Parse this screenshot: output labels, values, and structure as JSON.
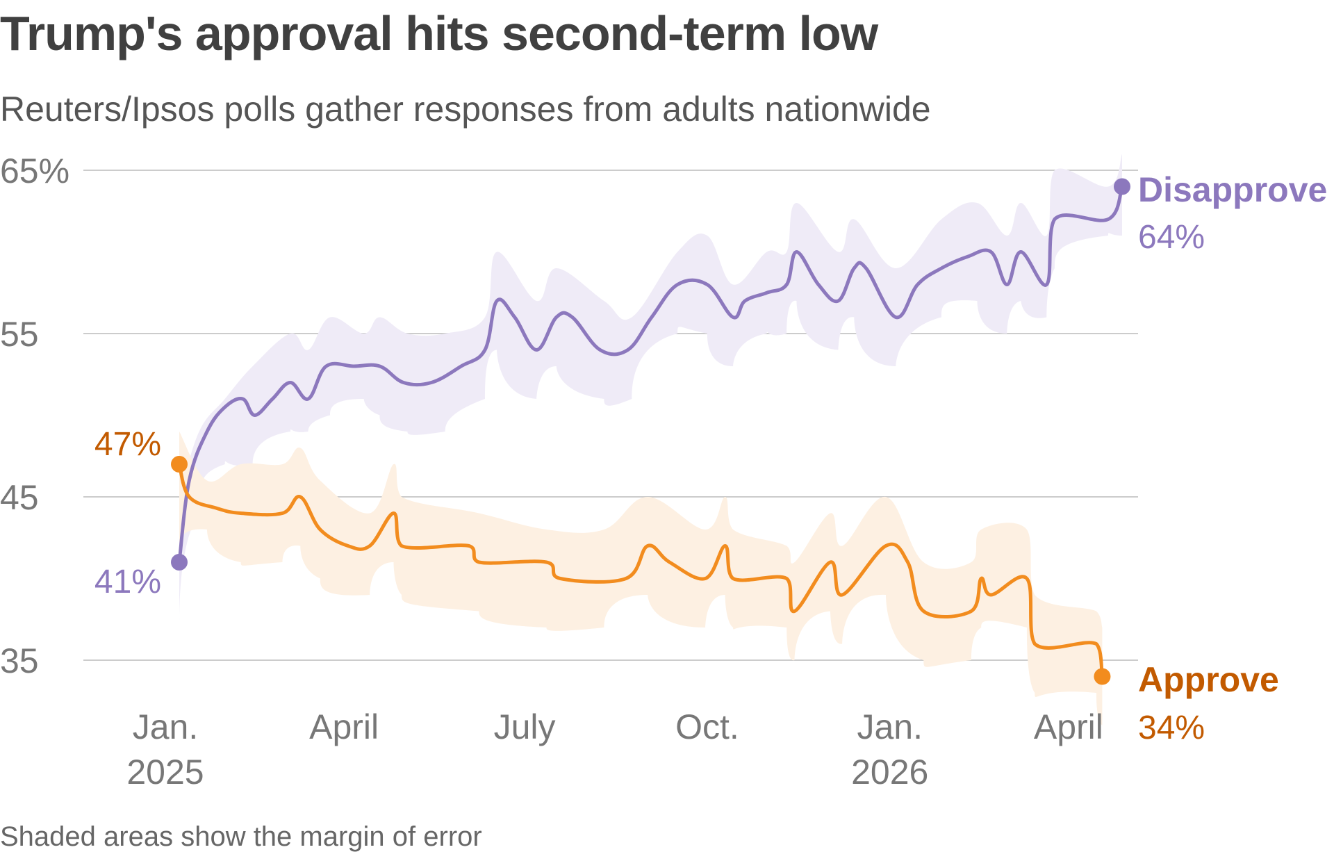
{
  "title": "Trump's approval hits second-term low",
  "subtitle": "Reuters/Ipsos polls gather responses from adults nationwide",
  "footnote": "Shaded areas show the margin of error",
  "colors": {
    "disapprove": "#8c78bd",
    "disapprove_band": "#efebf7",
    "approve": "#f28c1e",
    "approve_band": "#fdf0e2",
    "approve_label": "#c25a00",
    "grid": "#cccccc",
    "tick": "#777777"
  },
  "chart_data": {
    "type": "line",
    "title": "Trump's approval hits second-term low",
    "subtitle": "Reuters/Ipsos polls gather responses from adults nationwide",
    "xlabel": "",
    "ylabel": "",
    "ylim": [
      33,
      66
    ],
    "xlim": [
      "2025-01-01",
      "2026-05-12"
    ],
    "grid": true,
    "y_ticks": [
      {
        "value": 65,
        "label": "65%"
      },
      {
        "value": 55,
        "label": "55"
      },
      {
        "value": 45,
        "label": "45"
      },
      {
        "value": 35,
        "label": "35"
      }
    ],
    "x_ticks": [
      {
        "date": "2025-01-15",
        "label": "Jan.",
        "sublabel": "2025"
      },
      {
        "date": "2025-04-15",
        "label": "April",
        "sublabel": ""
      },
      {
        "date": "2025-07-15",
        "label": "July",
        "sublabel": ""
      },
      {
        "date": "2025-10-15",
        "label": "Oct.",
        "sublabel": ""
      },
      {
        "date": "2026-01-15",
        "label": "Jan.",
        "sublabel": "2026"
      },
      {
        "date": "2026-04-15",
        "label": "April",
        "sublabel": ""
      }
    ],
    "series": [
      {
        "name": "Disapprove",
        "key": "disapprove",
        "end_label": "64%",
        "start_label": "41%",
        "points": [
          [
            "2025-01-22",
            41
          ],
          [
            "2025-01-27",
            46
          ],
          [
            "2025-02-05",
            49
          ],
          [
            "2025-02-14",
            50.5
          ],
          [
            "2025-02-23",
            51
          ],
          [
            "2025-03-01",
            50
          ],
          [
            "2025-03-10",
            51
          ],
          [
            "2025-03-19",
            52
          ],
          [
            "2025-03-28",
            51
          ],
          [
            "2025-04-06",
            53
          ],
          [
            "2025-04-20",
            53
          ],
          [
            "2025-05-03",
            53
          ],
          [
            "2025-05-15",
            52
          ],
          [
            "2025-05-29",
            52
          ],
          [
            "2025-06-13",
            53
          ],
          [
            "2025-06-25",
            54
          ],
          [
            "2025-07-01",
            57
          ],
          [
            "2025-07-10",
            56
          ],
          [
            "2025-07-21",
            54
          ],
          [
            "2025-07-31",
            56
          ],
          [
            "2025-08-08",
            56
          ],
          [
            "2025-08-22",
            54
          ],
          [
            "2025-09-05",
            54
          ],
          [
            "2025-09-17",
            56
          ],
          [
            "2025-09-30",
            58
          ],
          [
            "2025-10-15",
            58
          ],
          [
            "2025-10-28",
            56
          ],
          [
            "2025-11-03",
            57
          ],
          [
            "2025-11-14",
            57.5
          ],
          [
            "2025-11-24",
            58
          ],
          [
            "2025-11-29",
            60
          ],
          [
            "2025-12-10",
            58
          ],
          [
            "2025-12-20",
            57
          ],
          [
            "2025-12-28",
            59
          ],
          [
            "2026-01-03",
            59
          ],
          [
            "2026-01-18",
            56
          ],
          [
            "2026-01-29",
            58
          ],
          [
            "2026-02-10",
            59
          ],
          [
            "2026-02-23",
            59.7
          ],
          [
            "2026-03-07",
            60
          ],
          [
            "2026-03-15",
            58
          ],
          [
            "2026-03-22",
            60
          ],
          [
            "2026-04-04",
            58
          ],
          [
            "2026-04-08",
            62
          ],
          [
            "2026-05-05",
            62
          ],
          [
            "2026-05-12",
            64
          ]
        ],
        "margin_band": [
          [
            "2025-01-22",
            37,
            45
          ],
          [
            "2025-02-01",
            44,
            49
          ],
          [
            "2025-02-14",
            47,
            51
          ],
          [
            "2025-02-28",
            47,
            53
          ],
          [
            "2025-03-19",
            49,
            55
          ],
          [
            "2025-03-28",
            49,
            54
          ],
          [
            "2025-04-08",
            50,
            56
          ],
          [
            "2025-04-25",
            51,
            55
          ],
          [
            "2025-05-03",
            50,
            56
          ],
          [
            "2025-05-17",
            49,
            55
          ],
          [
            "2025-06-05",
            49,
            55
          ],
          [
            "2025-06-25",
            51,
            56
          ],
          [
            "2025-07-01",
            54,
            60
          ],
          [
            "2025-07-21",
            51,
            57
          ],
          [
            "2025-07-31",
            53,
            59
          ],
          [
            "2025-08-24",
            51,
            57
          ],
          [
            "2025-09-07",
            51,
            56
          ],
          [
            "2025-09-30",
            55,
            60
          ],
          [
            "2025-10-15",
            55,
            61
          ],
          [
            "2025-10-28",
            53,
            58
          ],
          [
            "2025-11-14",
            55,
            60
          ],
          [
            "2025-11-24",
            55,
            60
          ],
          [
            "2025-11-29",
            57,
            63
          ],
          [
            "2025-12-20",
            54,
            60
          ],
          [
            "2025-12-28",
            56,
            62
          ],
          [
            "2026-01-18",
            53,
            59
          ],
          [
            "2026-02-10",
            56,
            62
          ],
          [
            "2026-02-28",
            57,
            63
          ],
          [
            "2026-03-15",
            55,
            61
          ],
          [
            "2026-03-22",
            57,
            63
          ],
          [
            "2026-04-04",
            56,
            61
          ],
          [
            "2026-04-08",
            59,
            65
          ],
          [
            "2026-05-05",
            61,
            64
          ],
          [
            "2026-05-12",
            61,
            66
          ]
        ]
      },
      {
        "name": "Approve",
        "key": "approve",
        "end_label": "34%",
        "start_label": "47%",
        "points": [
          [
            "2025-01-22",
            47
          ],
          [
            "2025-01-27",
            45
          ],
          [
            "2025-02-10",
            44.3
          ],
          [
            "2025-02-22",
            44
          ],
          [
            "2025-03-15",
            44
          ],
          [
            "2025-03-24",
            45
          ],
          [
            "2025-04-03",
            43
          ],
          [
            "2025-04-17",
            42
          ],
          [
            "2025-04-28",
            42
          ],
          [
            "2025-05-10",
            44
          ],
          [
            "2025-05-14",
            42
          ],
          [
            "2025-06-17",
            42
          ],
          [
            "2025-06-22",
            41
          ],
          [
            "2025-07-26",
            41
          ],
          [
            "2025-08-02",
            40
          ],
          [
            "2025-09-04",
            40
          ],
          [
            "2025-09-15",
            42
          ],
          [
            "2025-09-26",
            41
          ],
          [
            "2025-10-14",
            40
          ],
          [
            "2025-10-24",
            42
          ],
          [
            "2025-10-28",
            40
          ],
          [
            "2025-11-24",
            40
          ],
          [
            "2025-11-28",
            38
          ],
          [
            "2025-12-16",
            41
          ],
          [
            "2025-12-22",
            39
          ],
          [
            "2026-01-13",
            42
          ],
          [
            "2026-01-24",
            41
          ],
          [
            "2026-02-01",
            38
          ],
          [
            "2026-02-25",
            38
          ],
          [
            "2026-03-02",
            40
          ],
          [
            "2026-03-07",
            39
          ],
          [
            "2026-03-25",
            40
          ],
          [
            "2026-03-29",
            36
          ],
          [
            "2026-04-29",
            36
          ],
          [
            "2026-05-02",
            34
          ]
        ],
        "margin_band": [
          [
            "2025-01-22",
            42,
            49
          ],
          [
            "2025-02-05",
            43,
            46
          ],
          [
            "2025-02-22",
            41,
            47
          ],
          [
            "2025-03-15",
            41,
            47
          ],
          [
            "2025-03-24",
            42,
            48
          ],
          [
            "2025-04-03",
            40,
            46
          ],
          [
            "2025-04-28",
            39,
            44
          ],
          [
            "2025-05-10",
            41,
            47
          ],
          [
            "2025-05-14",
            39,
            45
          ],
          [
            "2025-06-22",
            38,
            44
          ],
          [
            "2025-07-26",
            37,
            43
          ],
          [
            "2025-08-24",
            37,
            43
          ],
          [
            "2025-09-15",
            39,
            45
          ],
          [
            "2025-10-14",
            37,
            43
          ],
          [
            "2025-10-24",
            39,
            45
          ],
          [
            "2025-10-28",
            37,
            43
          ],
          [
            "2025-11-24",
            37,
            42
          ],
          [
            "2025-11-28",
            35,
            41
          ],
          [
            "2025-12-16",
            38,
            44
          ],
          [
            "2025-12-22",
            36,
            42
          ],
          [
            "2026-01-13",
            39,
            45
          ],
          [
            "2026-02-01",
            35,
            41
          ],
          [
            "2026-02-25",
            35,
            41
          ],
          [
            "2026-03-02",
            37,
            43
          ],
          [
            "2026-03-25",
            37,
            43
          ],
          [
            "2026-03-29",
            33,
            39
          ],
          [
            "2026-04-29",
            33,
            38
          ],
          [
            "2026-05-02",
            31,
            37
          ]
        ]
      }
    ]
  }
}
